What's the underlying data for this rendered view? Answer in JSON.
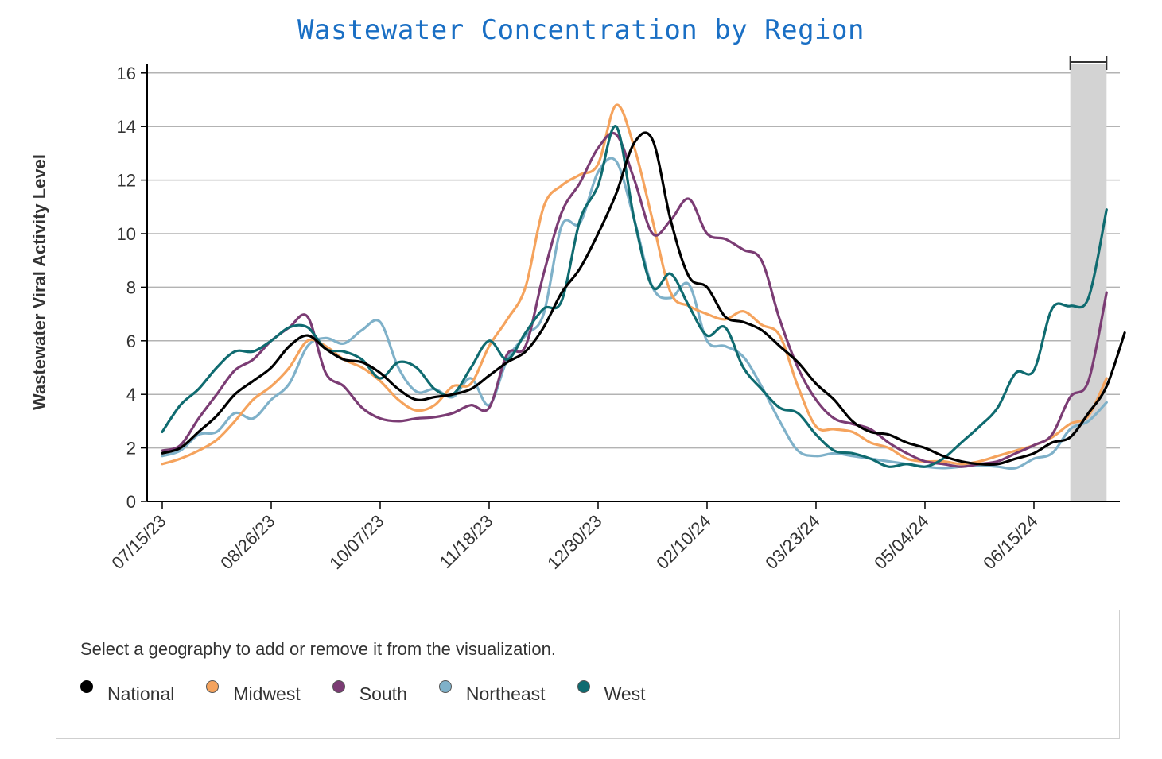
{
  "chart_data": {
    "type": "line",
    "title": "Wastewater Concentration by Region",
    "xlabel": "",
    "ylabel": "Wastewater Viral Activity Level",
    "ylim": [
      0,
      16
    ],
    "yticks": [
      0,
      2,
      4,
      6,
      8,
      10,
      12,
      14,
      16
    ],
    "x_tick_weeks": [
      0,
      6,
      12,
      18,
      24,
      30,
      36,
      42,
      48
    ],
    "x_tick_labels": [
      "07/15/23",
      "08/26/23",
      "10/07/23",
      "11/18/23",
      "12/30/23",
      "02/10/24",
      "03/23/24",
      "05/04/24",
      "06/15/24"
    ],
    "x_range_weeks": [
      0,
      52
    ],
    "shaded_region_weeks": [
      50,
      52
    ],
    "grid": true,
    "series": [
      {
        "name": "National",
        "color": "#000000",
        "points": [
          [
            0,
            1.8
          ],
          [
            1,
            2.0
          ],
          [
            2,
            2.6
          ],
          [
            3,
            3.2
          ],
          [
            4,
            4.0
          ],
          [
            5,
            4.5
          ],
          [
            6,
            5.0
          ],
          [
            7,
            5.8
          ],
          [
            8,
            6.2
          ],
          [
            9,
            5.7
          ],
          [
            10,
            5.3
          ],
          [
            11,
            5.2
          ],
          [
            12,
            4.8
          ],
          [
            13,
            4.2
          ],
          [
            14,
            3.8
          ],
          [
            15,
            3.9
          ],
          [
            16,
            4.0
          ],
          [
            17,
            4.2
          ],
          [
            18,
            4.7
          ],
          [
            19,
            5.2
          ],
          [
            20,
            5.6
          ],
          [
            21,
            6.5
          ],
          [
            22,
            7.8
          ],
          [
            23,
            8.7
          ],
          [
            24,
            10.0
          ],
          [
            25,
            11.5
          ],
          [
            26,
            13.4
          ],
          [
            27,
            13.5
          ],
          [
            28,
            10.5
          ],
          [
            29,
            8.4
          ],
          [
            30,
            8.0
          ],
          [
            31,
            6.9
          ],
          [
            32,
            6.7
          ],
          [
            33,
            6.4
          ],
          [
            34,
            5.8
          ],
          [
            35,
            5.2
          ],
          [
            36,
            4.4
          ],
          [
            37,
            3.8
          ],
          [
            38,
            3.0
          ],
          [
            39,
            2.6
          ],
          [
            40,
            2.5
          ],
          [
            41,
            2.2
          ],
          [
            42,
            2.0
          ],
          [
            43,
            1.7
          ],
          [
            44,
            1.5
          ],
          [
            45,
            1.4
          ],
          [
            46,
            1.4
          ],
          [
            47,
            1.6
          ],
          [
            48,
            1.8
          ],
          [
            49,
            2.2
          ],
          [
            50,
            2.4
          ],
          [
            51,
            3.3
          ],
          [
            52,
            4.3
          ],
          [
            53,
            6.3
          ]
        ]
      },
      {
        "name": "Midwest",
        "color": "#f5a35d",
        "points": [
          [
            0,
            1.4
          ],
          [
            1,
            1.6
          ],
          [
            2,
            1.9
          ],
          [
            3,
            2.3
          ],
          [
            4,
            3.0
          ],
          [
            5,
            3.8
          ],
          [
            6,
            4.3
          ],
          [
            7,
            5.0
          ],
          [
            8,
            6.0
          ],
          [
            9,
            5.8
          ],
          [
            10,
            5.3
          ],
          [
            11,
            5.0
          ],
          [
            12,
            4.5
          ],
          [
            13,
            3.8
          ],
          [
            14,
            3.4
          ],
          [
            15,
            3.6
          ],
          [
            16,
            4.3
          ],
          [
            17,
            4.4
          ],
          [
            18,
            5.8
          ],
          [
            19,
            6.8
          ],
          [
            20,
            8.0
          ],
          [
            21,
            11.0
          ],
          [
            22,
            11.8
          ],
          [
            23,
            12.2
          ],
          [
            24,
            12.6
          ],
          [
            25,
            14.8
          ],
          [
            26,
            13.2
          ],
          [
            27,
            10.5
          ],
          [
            28,
            7.8
          ],
          [
            29,
            7.3
          ],
          [
            30,
            7.0
          ],
          [
            31,
            6.8
          ],
          [
            32,
            7.1
          ],
          [
            33,
            6.6
          ],
          [
            34,
            6.2
          ],
          [
            35,
            4.3
          ],
          [
            36,
            2.8
          ],
          [
            37,
            2.7
          ],
          [
            38,
            2.6
          ],
          [
            39,
            2.2
          ],
          [
            40,
            2.0
          ],
          [
            41,
            1.6
          ],
          [
            42,
            1.5
          ],
          [
            43,
            1.5
          ],
          [
            44,
            1.4
          ],
          [
            45,
            1.5
          ],
          [
            46,
            1.7
          ],
          [
            47,
            1.9
          ],
          [
            48,
            2.1
          ],
          [
            49,
            2.4
          ],
          [
            50,
            2.9
          ],
          [
            51,
            3.2
          ],
          [
            52,
            4.6
          ]
        ]
      },
      {
        "name": "South",
        "color": "#7b3c74",
        "points": [
          [
            0,
            1.9
          ],
          [
            1,
            2.1
          ],
          [
            2,
            3.1
          ],
          [
            3,
            4.0
          ],
          [
            4,
            4.9
          ],
          [
            5,
            5.3
          ],
          [
            6,
            6.0
          ],
          [
            7,
            6.5
          ],
          [
            8,
            6.9
          ],
          [
            9,
            4.8
          ],
          [
            10,
            4.3
          ],
          [
            11,
            3.5
          ],
          [
            12,
            3.1
          ],
          [
            13,
            3.0
          ],
          [
            14,
            3.1
          ],
          [
            15,
            3.15
          ],
          [
            16,
            3.3
          ],
          [
            17,
            3.6
          ],
          [
            18,
            3.5
          ],
          [
            19,
            5.5
          ],
          [
            20,
            5.8
          ],
          [
            21,
            8.5
          ],
          [
            22,
            10.8
          ],
          [
            23,
            11.9
          ],
          [
            24,
            13.2
          ],
          [
            25,
            13.7
          ],
          [
            26,
            12.0
          ],
          [
            27,
            10.0
          ],
          [
            28,
            10.5
          ],
          [
            29,
            11.3
          ],
          [
            30,
            10.0
          ],
          [
            31,
            9.8
          ],
          [
            32,
            9.4
          ],
          [
            33,
            9.0
          ],
          [
            34,
            6.8
          ],
          [
            35,
            5.0
          ],
          [
            36,
            3.8
          ],
          [
            37,
            3.1
          ],
          [
            38,
            2.9
          ],
          [
            39,
            2.7
          ],
          [
            40,
            2.2
          ],
          [
            41,
            1.8
          ],
          [
            42,
            1.5
          ],
          [
            43,
            1.4
          ],
          [
            44,
            1.3
          ],
          [
            45,
            1.4
          ],
          [
            46,
            1.5
          ],
          [
            47,
            1.8
          ],
          [
            48,
            2.1
          ],
          [
            49,
            2.5
          ],
          [
            50,
            3.9
          ],
          [
            51,
            4.5
          ],
          [
            52,
            7.8
          ]
        ]
      },
      {
        "name": "Northeast",
        "color": "#7fb1c9",
        "points": [
          [
            0,
            1.7
          ],
          [
            1,
            1.9
          ],
          [
            2,
            2.5
          ],
          [
            3,
            2.6
          ],
          [
            4,
            3.3
          ],
          [
            5,
            3.1
          ],
          [
            6,
            3.8
          ],
          [
            7,
            4.4
          ],
          [
            8,
            5.8
          ],
          [
            9,
            6.1
          ],
          [
            10,
            5.9
          ],
          [
            11,
            6.4
          ],
          [
            12,
            6.7
          ],
          [
            13,
            5.0
          ],
          [
            14,
            4.1
          ],
          [
            15,
            4.2
          ],
          [
            16,
            3.9
          ],
          [
            17,
            4.6
          ],
          [
            18,
            3.6
          ],
          [
            19,
            5.3
          ],
          [
            20,
            6.2
          ],
          [
            21,
            7.0
          ],
          [
            22,
            10.3
          ],
          [
            23,
            10.4
          ],
          [
            24,
            12.3
          ],
          [
            25,
            12.7
          ],
          [
            26,
            10.5
          ],
          [
            27,
            8.0
          ],
          [
            28,
            7.6
          ],
          [
            29,
            8.1
          ],
          [
            30,
            6.0
          ],
          [
            31,
            5.8
          ],
          [
            32,
            5.4
          ],
          [
            33,
            4.3
          ],
          [
            34,
            3.0
          ],
          [
            35,
            1.9
          ],
          [
            36,
            1.7
          ],
          [
            37,
            1.8
          ],
          [
            38,
            1.7
          ],
          [
            39,
            1.6
          ],
          [
            40,
            1.5
          ],
          [
            41,
            1.4
          ],
          [
            42,
            1.3
          ],
          [
            43,
            1.25
          ],
          [
            44,
            1.3
          ],
          [
            45,
            1.35
          ],
          [
            46,
            1.3
          ],
          [
            47,
            1.25
          ],
          [
            48,
            1.6
          ],
          [
            49,
            1.8
          ],
          [
            50,
            2.7
          ],
          [
            51,
            3.0
          ],
          [
            52,
            3.7
          ]
        ]
      },
      {
        "name": "West",
        "color": "#0f6b70",
        "points": [
          [
            0,
            2.6
          ],
          [
            1,
            3.6
          ],
          [
            2,
            4.2
          ],
          [
            3,
            5.0
          ],
          [
            4,
            5.6
          ],
          [
            5,
            5.6
          ],
          [
            6,
            6.0
          ],
          [
            7,
            6.5
          ],
          [
            8,
            6.5
          ],
          [
            9,
            5.7
          ],
          [
            10,
            5.6
          ],
          [
            11,
            5.3
          ],
          [
            12,
            4.6
          ],
          [
            13,
            5.2
          ],
          [
            14,
            5.0
          ],
          [
            15,
            4.2
          ],
          [
            16,
            4.0
          ],
          [
            17,
            5.0
          ],
          [
            18,
            6.0
          ],
          [
            19,
            5.3
          ],
          [
            20,
            6.3
          ],
          [
            21,
            7.2
          ],
          [
            22,
            7.5
          ],
          [
            23,
            10.5
          ],
          [
            24,
            11.8
          ],
          [
            25,
            14.0
          ],
          [
            26,
            10.5
          ],
          [
            27,
            8.0
          ],
          [
            28,
            8.5
          ],
          [
            29,
            7.3
          ],
          [
            30,
            6.2
          ],
          [
            31,
            6.5
          ],
          [
            32,
            5.0
          ],
          [
            33,
            4.2
          ],
          [
            34,
            3.5
          ],
          [
            35,
            3.3
          ],
          [
            36,
            2.5
          ],
          [
            37,
            1.9
          ],
          [
            38,
            1.8
          ],
          [
            39,
            1.6
          ],
          [
            40,
            1.3
          ],
          [
            41,
            1.4
          ],
          [
            42,
            1.3
          ],
          [
            43,
            1.6
          ],
          [
            44,
            2.2
          ],
          [
            45,
            2.8
          ],
          [
            46,
            3.5
          ],
          [
            47,
            4.8
          ],
          [
            48,
            4.9
          ],
          [
            49,
            7.2
          ],
          [
            50,
            7.3
          ],
          [
            51,
            7.6
          ],
          [
            52,
            10.9
          ]
        ]
      }
    ]
  },
  "legend": {
    "instruction": "Select a geography to add or remove it from the visualization.",
    "items": [
      {
        "label": "National",
        "color": "#000000"
      },
      {
        "label": "Midwest",
        "color": "#f5a35d"
      },
      {
        "label": "South",
        "color": "#7b3c74"
      },
      {
        "label": "Northeast",
        "color": "#7fb1c9"
      },
      {
        "label": "West",
        "color": "#0f6b70"
      }
    ]
  }
}
